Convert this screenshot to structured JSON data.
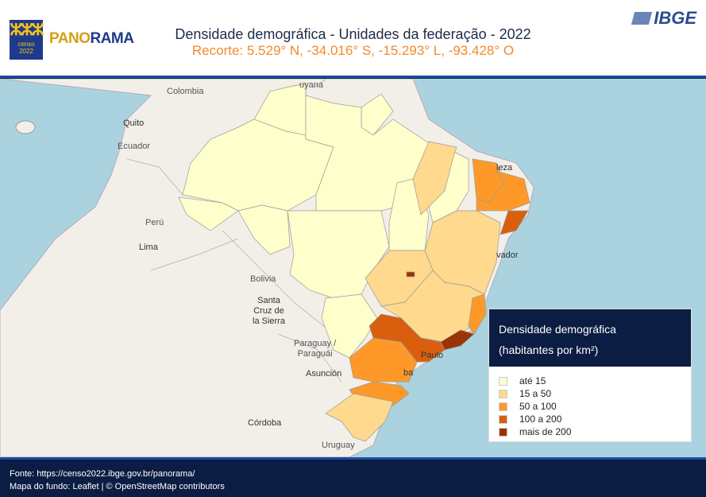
{
  "header": {
    "title": "Densidade demográfica - Unidades da federação - 2022",
    "subtitle": "Recorte: 5.529° N, -34.016° S, -15.293° L, -93.428° O",
    "logo_censo": "censo",
    "logo_year": "2022",
    "panorama_a": "PANO",
    "panorama_b": "RAMA",
    "ibge": "IBGE"
  },
  "map": {
    "labels": [
      "Colombia",
      "Quito",
      "Ecuador",
      "Perú",
      "Lima",
      "Bolivia",
      "Santa\nCruz de\nla Sierra",
      "Paraguay /\nParaguái",
      "Asunción",
      "Córdoba",
      "Uruguay",
      "uyana",
      "leza",
      "vador",
      "Paulo",
      "ba"
    ],
    "colors": {
      "water": "#aad3df",
      "land": "#f2efe9"
    }
  },
  "legend": {
    "title_line1": "Densidade demográfica",
    "title_line2": "(habitantes por km²)",
    "items": [
      {
        "label": "até 15",
        "color": "#ffffcc"
      },
      {
        "label": "15 a 50",
        "color": "#fed98e"
      },
      {
        "label": "50 a 100",
        "color": "#fe9929"
      },
      {
        "label": "100 a 200",
        "color": "#d95f0e"
      },
      {
        "label": "mais de 200",
        "color": "#993404"
      }
    ]
  },
  "footer": {
    "line1": "Fonte: https://censo2022.ibge.gov.br/panorama/",
    "line2": "Mapa do fundo: Leaflet | © OpenStreetMap contributors"
  }
}
